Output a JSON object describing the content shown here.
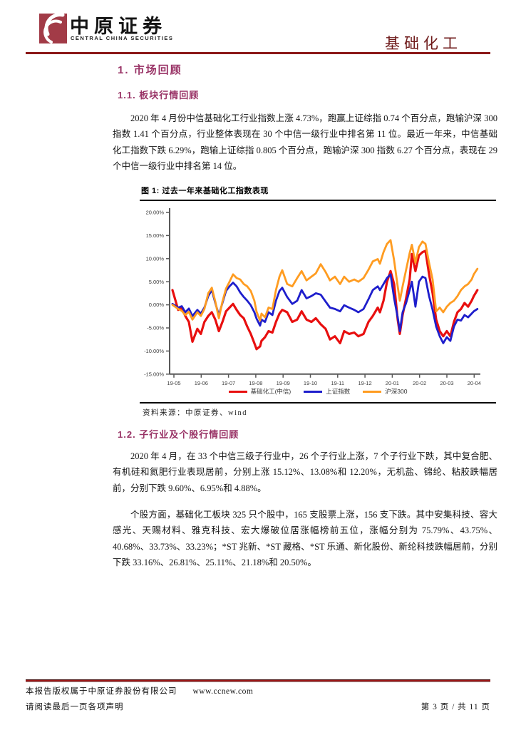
{
  "header": {
    "brand_cn": "中原证券",
    "brand_en": "CENTRAL CHINA SECURITIES",
    "category": "基础化工",
    "brand_color": "#A23B47",
    "rule_color": "#8B1818"
  },
  "sections": {
    "s1": "1. 市场回顾",
    "s1_1": "1.1. 板块行情回顾",
    "s1_2": "1.2. 子行业及个股行情回顾",
    "heading_color": "#993366"
  },
  "paragraphs": {
    "market_review": "2020 年 4 月份中信基础化工行业指数上涨 4.73%，跑赢上证综指 0.74 个百分点，跑输沪深 300 指数 1.41 个百分点，行业整体表现在 30 个中信一级行业中排名第 11 位。最近一年来，中信基础化工指数下跌 6.29%，跑输上证综指 0.805 个百分点，跑输沪深 300 指数 6.27 个百分点，表现在 29 个中信一级行业中排名第 14 位。",
    "subsector_review": "2020 年 4 月，在 33 个中信三级子行业中，26 个子行业上涨，7 个子行业下跌，其中复合肥、有机硅和氮肥行业表现居前，分别上涨 15.12%、13.08%和 12.20%，无机盐、锦纶、粘胶跌幅居前，分别下跌 9.60%、6.95%和 4.88%。",
    "stock_review": "个股方面，基础化工板块 325 只个股中，165 支股票上涨，156 支下跌。其中安集科技、容大感光、天赐材料、雅克科技、宏大爆破位居涨幅榜前五位，涨幅分别为 75.79%、43.75%、40.68%、33.73%、33.23%；*ST 兆新、*ST 藏格、*ST 乐通、新化股份、新纶科技跌幅居前，分别下跌 33.16%、26.81%、25.11%、21.18%和 20.50%。"
  },
  "figure": {
    "caption": "图 1:  过去一年来基础化工指数表现",
    "source": "资料来源：中原证券、wind"
  },
  "chart_data": {
    "type": "line",
    "title": "过去一年来基础化工指数表现",
    "grid": false,
    "legend_position": "bottom",
    "axis_color": "#595959",
    "ylim": [
      -15,
      20
    ],
    "y_ticks": [
      "20.00%",
      "15.00%",
      "10.00%",
      "5.00%",
      "0.00%",
      "-5.00%",
      "-10.00%",
      "-15.00%"
    ],
    "x_ticks": [
      "19-05",
      "19-06",
      "19-07",
      "19-08",
      "19-09",
      "19-10",
      "19-11",
      "19-12",
      "20-01",
      "20-02",
      "20-03",
      "20-04"
    ],
    "x_months": [
      0.0,
      0.21,
      0.34,
      0.47,
      0.6,
      0.73,
      0.91,
      1.04,
      1.17,
      1.31,
      1.44,
      1.57,
      1.7,
      1.83,
      1.96,
      2.09,
      2.22,
      2.35,
      2.48,
      2.61,
      2.74,
      2.87,
      3.0,
      3.08,
      3.21,
      3.26,
      3.39,
      3.52,
      3.66,
      3.79,
      3.92,
      4.02,
      4.2,
      4.39,
      4.57,
      4.73,
      4.91,
      5.09,
      5.25,
      5.43,
      5.61,
      5.77,
      5.95,
      6.14,
      6.29,
      6.47,
      6.66,
      6.81,
      7.0,
      7.18,
      7.34,
      7.52,
      7.6,
      7.73,
      7.86,
      7.99,
      8.12,
      8.25,
      8.33,
      8.43,
      8.56,
      8.69,
      8.77,
      8.9,
      9.03,
      9.16,
      9.27,
      9.4,
      9.53,
      9.66,
      9.79,
      9.92,
      10.05,
      10.18,
      10.31,
      10.44,
      10.57,
      10.7,
      10.83,
      10.96,
      11.04,
      11.17
    ],
    "series": [
      {
        "name": "基础化工(中信)",
        "color": "#E80F0F",
        "values": [
          3.2,
          -1.1,
          -0.6,
          -2.4,
          -3.7,
          -8.0,
          -5.2,
          -6.3,
          -3.7,
          -2.4,
          -1.6,
          -3.2,
          -5.7,
          -3.7,
          -1.4,
          -0.6,
          0.2,
          -1.1,
          -2.2,
          -2.9,
          -4.7,
          -6.3,
          -8.3,
          -9.6,
          -9.0,
          -7.8,
          -7.0,
          -5.7,
          -6.0,
          -3.7,
          -1.9,
          -1.1,
          -1.6,
          -3.7,
          -3.2,
          -1.4,
          -3.2,
          -3.7,
          -2.9,
          -4.2,
          -5.2,
          -7.5,
          -6.8,
          -8.3,
          -5.7,
          -6.3,
          -6.0,
          -6.8,
          -6.3,
          -3.7,
          -2.4,
          -0.6,
          -1.6,
          0.9,
          5.0,
          7.3,
          4.5,
          -3.2,
          -6.3,
          -2.2,
          1.4,
          5.5,
          11.0,
          7.3,
          10.7,
          11.4,
          11.7,
          6.6,
          2.5,
          -3.2,
          -5.7,
          -6.8,
          -5.7,
          -6.8,
          -3.7,
          -1.6,
          -0.9,
          0.4,
          -0.4,
          0.9,
          1.9,
          3.2
        ]
      },
      {
        "name": "上证指数",
        "color": "#1E1ECC",
        "values": [
          0.2,
          -0.6,
          -0.3,
          -1.6,
          -0.8,
          -2.4,
          -1.1,
          -1.9,
          -0.6,
          1.9,
          3.2,
          0.4,
          -2.2,
          0.4,
          3.0,
          4.0,
          4.8,
          4.0,
          2.7,
          1.7,
          0.9,
          -0.1,
          -1.6,
          -3.0,
          -4.5,
          -3.2,
          -3.7,
          -1.6,
          -2.2,
          0.9,
          3.0,
          3.7,
          1.7,
          0.2,
          0.9,
          3.2,
          1.4,
          1.9,
          2.5,
          2.2,
          0.7,
          -0.6,
          -0.9,
          -1.4,
          -0.1,
          -0.6,
          -1.1,
          -1.6,
          -0.9,
          1.2,
          3.2,
          4.0,
          3.2,
          4.5,
          5.8,
          6.6,
          1.4,
          -2.7,
          -5.7,
          -1.6,
          0.4,
          3.2,
          5.0,
          -0.4,
          5.0,
          6.1,
          5.8,
          1.9,
          -1.1,
          -4.7,
          -6.8,
          -8.3,
          -7.0,
          -7.8,
          -4.7,
          -3.2,
          -3.4,
          -2.2,
          -2.7,
          -1.9,
          -1.4,
          -0.9
        ]
      },
      {
        "name": "沪深300",
        "color": "#FF9C21",
        "values": [
          0.0,
          -0.9,
          -1.3,
          -2.2,
          -1.5,
          -3.2,
          -1.6,
          -2.4,
          -0.9,
          2.5,
          3.7,
          0.7,
          -2.9,
          0.7,
          3.5,
          5.0,
          6.6,
          5.8,
          5.5,
          4.5,
          4.0,
          3.0,
          0.9,
          -1.5,
          -3.4,
          -1.9,
          -2.7,
          -0.6,
          -0.9,
          3.2,
          6.1,
          7.5,
          4.5,
          4.0,
          5.8,
          7.3,
          5.3,
          6.1,
          6.8,
          8.8,
          7.1,
          5.3,
          6.1,
          4.5,
          6.1,
          5.0,
          5.5,
          5.0,
          5.8,
          7.6,
          9.4,
          9.9,
          8.9,
          11.4,
          13.2,
          14.0,
          9.6,
          4.0,
          0.9,
          4.0,
          7.6,
          11.2,
          13.0,
          9.1,
          12.5,
          13.7,
          13.2,
          9.1,
          5.5,
          -1.4,
          -0.6,
          -1.6,
          -0.4,
          0.4,
          0.9,
          1.9,
          3.2,
          4.0,
          4.5,
          5.5,
          6.6,
          7.8
        ]
      }
    ]
  },
  "footer": {
    "copyright": "本报告版权属于中原证券股份有限公司",
    "website": "www.ccnew.com",
    "disclaimer": "请阅读最后一页各项声明",
    "page_info": "第 3 页  /  共 11 页"
  }
}
